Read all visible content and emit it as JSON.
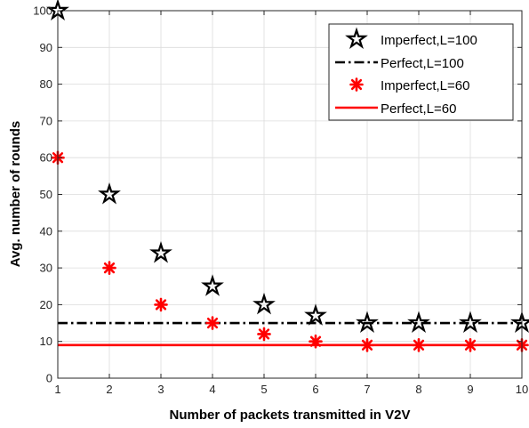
{
  "chart_data": {
    "type": "scatter",
    "title": "",
    "xlabel": "Number of packets transmitted in V2V",
    "ylabel": "Avg. number of rounds",
    "xlim": [
      1,
      10
    ],
    "ylim": [
      0,
      100
    ],
    "xticks": [
      1,
      2,
      3,
      4,
      5,
      6,
      7,
      8,
      9,
      10
    ],
    "yticks": [
      0,
      10,
      20,
      30,
      40,
      50,
      60,
      70,
      80,
      90,
      100
    ],
    "grid": true,
    "legend_position": "top-right",
    "series": [
      {
        "name": "Imperfect,L=100",
        "kind": "markers",
        "marker": "pentagram",
        "color": "#000000",
        "x": [
          1,
          2,
          3,
          4,
          5,
          6,
          7,
          8,
          9,
          10
        ],
        "y": [
          100,
          50,
          34,
          25,
          20,
          17,
          15,
          15,
          15,
          15
        ]
      },
      {
        "name": "Perfect,L=100",
        "kind": "line",
        "line_style": "dash-dot",
        "color": "#000000",
        "x": [
          1,
          10
        ],
        "y": [
          15,
          15
        ]
      },
      {
        "name": "Imperfect,L=60",
        "kind": "markers",
        "marker": "asterisk",
        "color": "#ff0000",
        "x": [
          1,
          2,
          3,
          4,
          5,
          6,
          7,
          8,
          9,
          10
        ],
        "y": [
          60,
          30,
          20,
          15,
          12,
          10,
          9,
          9,
          9,
          9
        ]
      },
      {
        "name": "Perfect,L=60",
        "kind": "line",
        "line_style": "solid",
        "color": "#ff0000",
        "x": [
          1,
          10
        ],
        "y": [
          9,
          9
        ]
      }
    ]
  }
}
